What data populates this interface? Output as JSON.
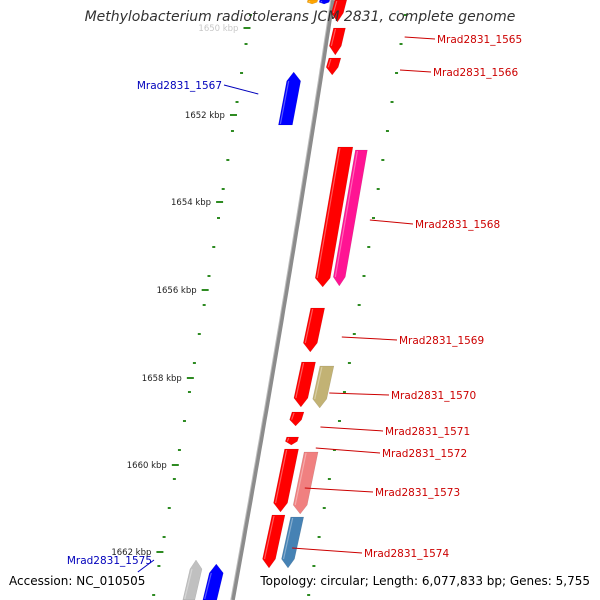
{
  "title": "Methylobacterium radiotolerans JCM 2831, complete genome",
  "footer": {
    "accession": "Accession: NC_010505",
    "summary": "Topology: circular; Length: 6,077,833 bp; Genes: 5,755"
  },
  "colors": {
    "backbone": "#8c8c8c",
    "tick": "#2e8b22",
    "forward_label": "#cc0000",
    "reverse_label": "#0000bb",
    "red_gene": "#ff0000",
    "blue_gene": "#0000ff"
  },
  "kbp_ticks": [
    {
      "label": "1650 kbp",
      "visible": false
    },
    {
      "label": "1652 kbp"
    },
    {
      "label": "1654 kbp"
    },
    {
      "label": "1656 kbp"
    },
    {
      "label": "1658 kbp"
    },
    {
      "label": "1660 kbp"
    },
    {
      "label": "1662 kbp"
    }
  ],
  "genes": [
    {
      "label": "Mrad2831_1565",
      "strand": "forward",
      "color": "#ff0000"
    },
    {
      "label": "Mrad2831_1566",
      "strand": "forward",
      "color": "#ff0000"
    },
    {
      "label": "Mrad2831_1567",
      "strand": "reverse",
      "color": "#0000ff"
    },
    {
      "label": "Mrad2831_1568",
      "strand": "forward",
      "color": "#ff0000"
    },
    {
      "label": "Mrad2831_1569",
      "strand": "forward",
      "color": "#ff0000"
    },
    {
      "label": "Mrad2831_1570",
      "strand": "forward",
      "color": "#ff0000"
    },
    {
      "label": "Mrad2831_1571",
      "strand": "forward",
      "color": "#ff0000"
    },
    {
      "label": "Mrad2831_1572",
      "strand": "forward",
      "color": "#ff0000"
    },
    {
      "label": "Mrad2831_1573",
      "strand": "forward",
      "color": "#ff0000"
    },
    {
      "label": "Mrad2831_1574",
      "strand": "forward",
      "color": "#ff0000"
    },
    {
      "label": "Mrad2831_1575",
      "strand": "reverse",
      "color": "#0000ff"
    }
  ],
  "annotation_features": [
    {
      "color": "#ff1493"
    },
    {
      "color": "#c2b274"
    },
    {
      "color": "#f08080"
    },
    {
      "color": "#4682b4"
    },
    {
      "color": "#c0c0c0"
    },
    {
      "color": "#ffa500"
    }
  ]
}
